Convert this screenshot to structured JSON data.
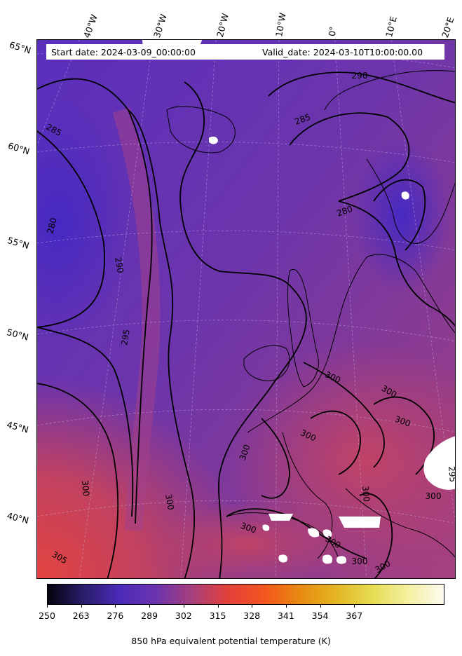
{
  "header": {
    "start_date": "Start date: 2024-03-09_00:00:00",
    "valid_date": "Valid_date: 2024-03-10T10:00:00.00"
  },
  "longitude_labels": [
    "40°W",
    "30°W",
    "20°W",
    "10°W",
    "0°",
    "10°E",
    "20°E"
  ],
  "latitude_labels": [
    "65°N",
    "60°N",
    "55°N",
    "50°N",
    "45°N",
    "40°N"
  ],
  "contour_labels": [
    "290",
    "285",
    "285",
    "280",
    "280",
    "290",
    "295",
    "300",
    "300",
    "300",
    "305",
    "300",
    "300",
    "300",
    "300",
    "295",
    "300",
    "300",
    "300",
    "300",
    "300",
    "300"
  ],
  "colorbar": {
    "ticks": [
      "250",
      "263",
      "276",
      "289",
      "302",
      "315",
      "328",
      "341",
      "354",
      "367"
    ],
    "label": "850 hPa equivalent potential temperature (K)",
    "colors": [
      "#05030e",
      "#2a1e6a",
      "#4a2ab8",
      "#6b34ae",
      "#a63f7d",
      "#e2413c",
      "#f3541f",
      "#e98a10",
      "#e3b523",
      "#e6dc52",
      "#f4f0a0",
      "#fdfbf0"
    ]
  },
  "field_colors": {
    "cold": "#4b2bbf",
    "mid": "#6a35a8",
    "warm": "#9a3e87",
    "hot": "#d74448",
    "missing": "#ffffff",
    "coast": "#000000"
  }
}
